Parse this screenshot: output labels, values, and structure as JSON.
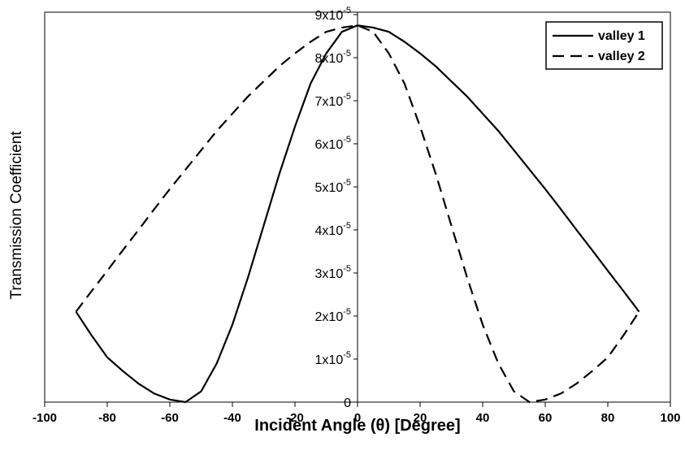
{
  "chart_data": {
    "type": "line",
    "x_label": "Incident Angle (θ) [Degree]",
    "y_label": "Transmission Coefficient",
    "x": [
      -90,
      -85,
      -80,
      -75,
      -70,
      -65,
      -60,
      -55,
      -50,
      -45,
      -40,
      -35,
      -30,
      -25,
      -20,
      -15,
      -10,
      -5,
      0,
      5,
      10,
      15,
      20,
      25,
      30,
      35,
      40,
      45,
      50,
      55,
      60,
      65,
      70,
      75,
      80,
      85,
      90
    ],
    "series": [
      {
        "name": "valley 1",
        "color": "#000000",
        "dash": "solid",
        "values": [
          2.1e-05,
          1.55e-05,
          1.04e-05,
          7.2e-06,
          4.3e-06,
          2e-06,
          6e-07,
          0,
          2.5e-06,
          9e-06,
          1.8e-05,
          2.9e-05,
          4.1e-05,
          5.3e-05,
          6.4e-05,
          7.4e-05,
          8.1e-05,
          8.6e-05,
          8.75e-05,
          8.7e-05,
          8.6e-05,
          8.37e-05,
          8.1e-05,
          7.8e-05,
          7.45e-05,
          7.1e-05,
          6.7e-05,
          6.3e-05,
          5.85e-05,
          5.4e-05,
          4.95e-05,
          4.48e-05,
          4e-05,
          3.53e-05,
          3.05e-05,
          2.58e-05,
          2.1e-05
        ]
      },
      {
        "name": "valley 2",
        "color": "#000000",
        "dash": "dashed",
        "values": [
          2.1e-05,
          2.58e-05,
          3.05e-05,
          3.53e-05,
          4e-05,
          4.48e-05,
          4.95e-05,
          5.4e-05,
          5.85e-05,
          6.3e-05,
          6.7e-05,
          7.1e-05,
          7.45e-05,
          7.8e-05,
          8.1e-05,
          8.37e-05,
          8.6e-05,
          8.7e-05,
          8.75e-05,
          8.6e-05,
          8.1e-05,
          7.4e-05,
          6.4e-05,
          5.3e-05,
          4.1e-05,
          2.9e-05,
          1.8e-05,
          9e-06,
          2.5e-06,
          0,
          6e-07,
          2e-06,
          4.3e-06,
          7.2e-06,
          1.04e-05,
          1.55e-05,
          2.1e-05
        ]
      }
    ],
    "xlim": [
      -100,
      100
    ],
    "xticks": [
      -100,
      -80,
      -60,
      -40,
      -20,
      0,
      20,
      40,
      60,
      80,
      100
    ],
    "ylim": [
      0,
      9e-05
    ],
    "yticks": [
      0,
      {
        "value": 1e-05,
        "label": "1x10",
        "exponent": "-5"
      },
      {
        "value": 2e-05,
        "label": "2x10",
        "exponent": "-5"
      },
      {
        "value": 3e-05,
        "label": "3x10",
        "exponent": "-5"
      },
      {
        "value": 4e-05,
        "label": "4x10",
        "exponent": "-5"
      },
      {
        "value": 5e-05,
        "label": "5x10",
        "exponent": "-5"
      },
      {
        "value": 6e-05,
        "label": "6x10",
        "exponent": "-5"
      },
      {
        "value": 7e-05,
        "label": "7x10",
        "exponent": "-5"
      },
      {
        "value": 8e-05,
        "label": "8x10",
        "exponent": "-5"
      },
      {
        "value": 9e-05,
        "label": "9x10",
        "exponent": "-5"
      }
    ],
    "legend": "top-right",
    "grid": false
  }
}
